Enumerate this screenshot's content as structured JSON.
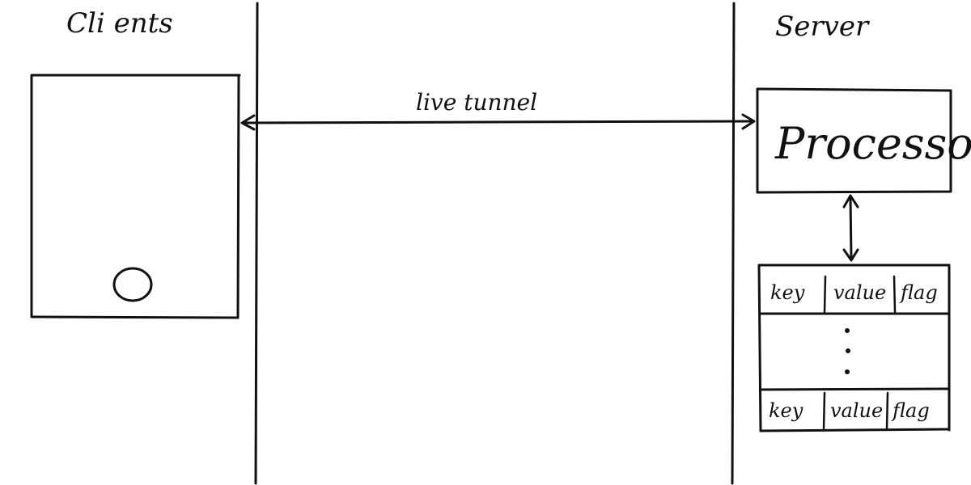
{
  "labels": {
    "client": "Cli ents",
    "server": "Server",
    "tunnel": "live tunnel",
    "processor": "Processor",
    "ellipsis": "⋮"
  },
  "table": {
    "header_row": [
      "key",
      "value",
      "flag"
    ],
    "footer_row": [
      "key",
      "value",
      "flag"
    ]
  },
  "colors": {
    "ink": "#111111",
    "background": "#ffffff"
  }
}
